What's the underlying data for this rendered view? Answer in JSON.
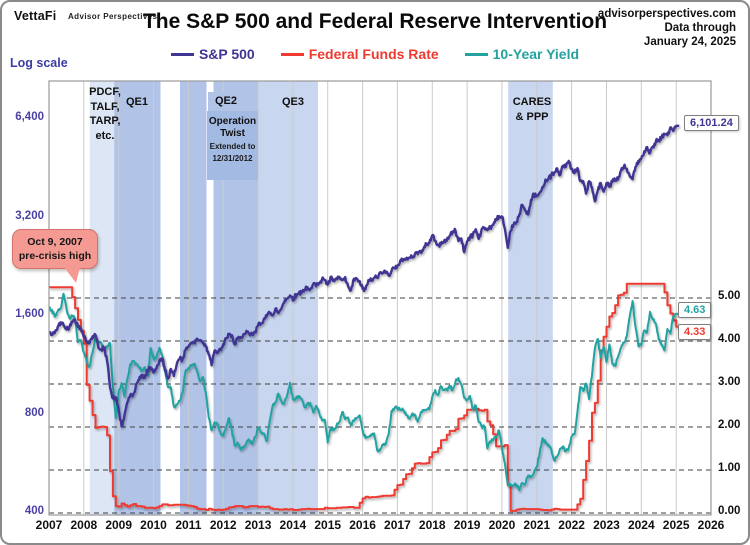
{
  "header": {
    "logo": "VettaFi",
    "logo_sub": "Advisor Perspectives",
    "title": "The S&P 500 and Federal Reserve Intervention",
    "source_site": "advisorperspectives.com",
    "data_through": "Data through",
    "data_date": "January 24, 2025"
  },
  "legend": [
    {
      "label": "S&P 500",
      "color": "#3f3693"
    },
    {
      "label": "Federal Funds Rate",
      "color": "#ee3a30"
    },
    {
      "label": "10-Year Yield",
      "color": "#23a2a0"
    }
  ],
  "axes": {
    "left_label": "Log scale",
    "left_ticks": [
      {
        "label": "6,400",
        "value": 6400
      },
      {
        "label": "3,200",
        "value": 3200
      },
      {
        "label": "1,600",
        "value": 1600
      },
      {
        "label": "800",
        "value": 800
      },
      {
        "label": "400",
        "value": 400
      }
    ],
    "right_ticks": [
      {
        "label": "5.00",
        "value": 5
      },
      {
        "label": "4.00",
        "value": 4
      },
      {
        "label": "3.00",
        "value": 3
      },
      {
        "label": "2.00",
        "value": 2
      },
      {
        "label": "1.00",
        "value": 1
      },
      {
        "label": "0.00",
        "value": 0
      }
    ],
    "years": [
      2007,
      2008,
      2009,
      2010,
      2011,
      2012,
      2013,
      2014,
      2015,
      2016,
      2017,
      2018,
      2019,
      2020,
      2021,
      2022,
      2023,
      2024,
      2025,
      2026
    ]
  },
  "annotations": {
    "precrisis": {
      "line1": "Oct 9, 2007",
      "line2": "pre-crisis high"
    },
    "pdcf": {
      "lines": [
        "PDCF,",
        "TALF,",
        "TARP,",
        "etc."
      ]
    },
    "qe1": "QE1",
    "qe2": "QE2",
    "qe3": "QE3",
    "optwist": {
      "line1": "Operation",
      "line2": "Twist",
      "line3": "Extended to",
      "line4": "12/31/2012"
    },
    "cares": {
      "line1": "CARES",
      "line2": "& PPP"
    }
  },
  "end_labels": {
    "sp500": "6,101.24",
    "ten_year": "4.63",
    "fed_funds": "4.33"
  },
  "colors": {
    "sp500": "#3f3693",
    "fed_funds": "#ee3a30",
    "ten_year": "#23a2a0",
    "axis_purple": "#4a42a3",
    "log_scale": "#3c3ca6",
    "band_light": "#dde6f5",
    "band_medium": "#b1c4e8",
    "band_soft": "#c8d6f0",
    "ot_box": "#a3bae3",
    "callout_bg": "#f49a92",
    "callout_border": "#d3736b"
  },
  "chart_data": {
    "type": "line",
    "title": "The S&P 500 and Federal Reserve Intervention",
    "x_range": [
      2007,
      2026
    ],
    "x_step_months": 1,
    "left_axis": {
      "scale": "log",
      "ticks": [
        400,
        800,
        1600,
        3200,
        6400
      ],
      "series": "S&P 500"
    },
    "right_axis": {
      "scale": "linear",
      "ticks": [
        0,
        1,
        2,
        3,
        4,
        5
      ],
      "series": "Fed Funds Rate and 10-Year Yield"
    },
    "bands": [
      {
        "name": "pdcf-talf-tarp",
        "from": 2008.17,
        "to": 2008.87,
        "color": "#dde6f5"
      },
      {
        "name": "qe1",
        "from": 2008.87,
        "to": 2010.2,
        "color": "#b1c4e8"
      },
      {
        "name": "qe2",
        "from": 2010.76,
        "to": 2011.52,
        "color": "#b1c4e8"
      },
      {
        "name": "qe3",
        "from": 2012.7,
        "to": 2014.72,
        "color": "#c8d6f0"
      },
      {
        "name": "operation-twist",
        "from": 2011.72,
        "to": 2013.0,
        "color": "#b1c4e8"
      },
      {
        "name": "cares-ppp",
        "from": 2020.18,
        "to": 2021.46,
        "color": "#c8d6f0"
      }
    ],
    "series": [
      {
        "name": "S&P 500",
        "axis": "left",
        "color": "#3f3693",
        "style": "line",
        "end_value": 6101.24,
        "values": [
          1438,
          1407,
          1421,
          1482,
          1531,
          1503,
          1455,
          1474,
          1527,
          1549,
          1481,
          1468,
          1379,
          1331,
          1323,
          1386,
          1400,
          1280,
          1267,
          1283,
          1166,
          969,
          896,
          903,
          826,
          735,
          798,
          873,
          919,
          919,
          987,
          1021,
          1057,
          1036,
          1096,
          1115,
          1074,
          1104,
          1169,
          1187,
          1089,
          1031,
          1102,
          1049,
          1141,
          1183,
          1181,
          1258,
          1286,
          1327,
          1326,
          1364,
          1345,
          1321,
          1292,
          1219,
          1131,
          1253,
          1247,
          1258,
          1312,
          1366,
          1408,
          1398,
          1310,
          1362,
          1379,
          1407,
          1441,
          1412,
          1416,
          1426,
          1498,
          1515,
          1569,
          1598,
          1631,
          1606,
          1686,
          1633,
          1682,
          1757,
          1806,
          1848,
          1783,
          1859,
          1872,
          1884,
          1924,
          1960,
          1931,
          2003,
          1972,
          2018,
          2068,
          2059,
          1995,
          2105,
          2068,
          2086,
          2107,
          2063,
          2104,
          1972,
          1920,
          2079,
          2080,
          2044,
          1940,
          1932,
          2060,
          2065,
          2097,
          2099,
          2174,
          2171,
          2168,
          2126,
          2199,
          2239,
          2279,
          2364,
          2363,
          2384,
          2412,
          2423,
          2470,
          2472,
          2519,
          2575,
          2648,
          2674,
          2824,
          2714,
          2641,
          2648,
          2705,
          2718,
          2816,
          2902,
          2914,
          2712,
          2760,
          2507,
          2704,
          2784,
          2834,
          2946,
          2752,
          2942,
          2980,
          2926,
          2977,
          3038,
          3141,
          3231,
          3226,
          2954,
          2585,
          2912,
          3044,
          3100,
          3271,
          3500,
          3363,
          3270,
          3622,
          3756,
          3714,
          3811,
          3973,
          4181,
          4204,
          4298,
          4395,
          4523,
          4308,
          4605,
          4567,
          4766,
          4516,
          4374,
          4530,
          4132,
          4132,
          3785,
          4130,
          3955,
          3586,
          3872,
          4080,
          3840,
          4077,
          3970,
          4109,
          4169,
          4180,
          4450,
          4589,
          4508,
          4288,
          4194,
          4568,
          4770,
          4846,
          5096,
          5254,
          5036,
          5278,
          5460,
          5522,
          5648,
          5762,
          5705,
          6032,
          5882,
          6101.24
        ]
      },
      {
        "name": "Federal Funds Rate",
        "axis": "right",
        "color": "#ee3a30",
        "style": "step",
        "end_value": 4.33,
        "values": [
          5.25,
          5.25,
          5.25,
          5.25,
          5.25,
          5.25,
          5.25,
          5.25,
          5.02,
          4.76,
          4.49,
          4.24,
          3.94,
          2.98,
          2.61,
          2.28,
          1.98,
          2.0,
          2.01,
          2.0,
          1.81,
          0.97,
          0.39,
          0.16,
          0.15,
          0.22,
          0.18,
          0.15,
          0.18,
          0.21,
          0.16,
          0.16,
          0.15,
          0.12,
          0.12,
          0.12,
          0.11,
          0.13,
          0.16,
          0.2,
          0.2,
          0.18,
          0.18,
          0.19,
          0.19,
          0.19,
          0.19,
          0.18,
          0.17,
          0.16,
          0.14,
          0.1,
          0.09,
          0.09,
          0.07,
          0.1,
          0.08,
          0.07,
          0.08,
          0.07,
          0.08,
          0.1,
          0.13,
          0.14,
          0.16,
          0.16,
          0.16,
          0.13,
          0.14,
          0.16,
          0.16,
          0.16,
          0.14,
          0.15,
          0.14,
          0.15,
          0.11,
          0.09,
          0.09,
          0.08,
          0.08,
          0.09,
          0.08,
          0.09,
          0.07,
          0.07,
          0.08,
          0.09,
          0.09,
          0.1,
          0.09,
          0.09,
          0.09,
          0.09,
          0.09,
          0.12,
          0.11,
          0.11,
          0.11,
          0.12,
          0.12,
          0.13,
          0.13,
          0.14,
          0.14,
          0.12,
          0.12,
          0.24,
          0.34,
          0.38,
          0.36,
          0.37,
          0.37,
          0.38,
          0.39,
          0.4,
          0.4,
          0.4,
          0.41,
          0.54,
          0.65,
          0.66,
          0.79,
          0.9,
          0.91,
          1.04,
          1.15,
          1.16,
          1.15,
          1.15,
          1.16,
          1.3,
          1.41,
          1.42,
          1.51,
          1.69,
          1.7,
          1.82,
          1.91,
          1.91,
          1.95,
          2.19,
          2.2,
          2.27,
          2.4,
          2.4,
          2.41,
          2.42,
          2.39,
          2.38,
          2.4,
          2.13,
          2.04,
          1.83,
          1.55,
          1.55,
          1.55,
          1.58,
          0.65,
          0.05,
          0.05,
          0.08,
          0.09,
          0.1,
          0.09,
          0.09,
          0.09,
          0.09,
          0.09,
          0.08,
          0.07,
          0.07,
          0.06,
          0.08,
          0.1,
          0.09,
          0.08,
          0.08,
          0.08,
          0.08,
          0.08,
          0.08,
          0.2,
          0.33,
          0.77,
          1.21,
          1.68,
          2.33,
          2.56,
          3.08,
          3.78,
          4.1,
          4.33,
          4.57,
          4.65,
          4.83,
          5.06,
          5.08,
          5.12,
          5.33,
          5.33,
          5.33,
          5.33,
          5.33,
          5.33,
          5.33,
          5.33,
          5.33,
          5.33,
          5.33,
          5.33,
          5.33,
          5.13,
          4.83,
          4.64,
          4.48,
          4.33
        ]
      },
      {
        "name": "10-Year Yield",
        "axis": "right",
        "color": "#23a2a0",
        "style": "line",
        "end_value": 4.63,
        "values": [
          4.76,
          4.72,
          4.56,
          4.69,
          4.75,
          5.1,
          4.76,
          4.54,
          4.59,
          4.53,
          3.97,
          4.02,
          3.74,
          3.51,
          3.41,
          3.73,
          4.06,
          3.99,
          3.95,
          3.83,
          3.85,
          3.95,
          2.96,
          2.21,
          2.84,
          3.02,
          2.71,
          3.12,
          3.46,
          3.53,
          3.48,
          3.4,
          3.31,
          3.39,
          3.2,
          3.84,
          3.59,
          3.61,
          3.84,
          3.66,
          3.29,
          2.93,
          2.91,
          2.47,
          2.51,
          2.6,
          2.8,
          3.3,
          3.37,
          3.42,
          3.47,
          3.29,
          3.06,
          3.16,
          2.8,
          2.22,
          1.92,
          2.11,
          2.07,
          1.88,
          1.8,
          1.97,
          2.21,
          1.91,
          1.56,
          1.64,
          1.47,
          1.55,
          1.63,
          1.69,
          1.61,
          1.76,
          1.98,
          1.88,
          1.85,
          1.67,
          2.13,
          2.49,
          2.58,
          2.78,
          2.61,
          2.55,
          2.74,
          3.03,
          2.64,
          2.65,
          2.72,
          2.65,
          2.46,
          2.53,
          2.56,
          2.34,
          2.49,
          2.34,
          2.16,
          2.17,
          1.64,
          1.99,
          1.92,
          2.03,
          2.12,
          2.35,
          2.18,
          2.22,
          2.04,
          2.14,
          2.21,
          2.27,
          1.92,
          1.74,
          1.77,
          1.83,
          1.85,
          1.47,
          1.45,
          1.58,
          1.6,
          1.83,
          2.38,
          2.44,
          2.45,
          2.39,
          2.39,
          2.28,
          2.2,
          2.3,
          2.29,
          2.12,
          2.33,
          2.38,
          2.41,
          2.41,
          2.71,
          2.86,
          2.74,
          2.95,
          2.86,
          2.86,
          2.96,
          2.86,
          3.06,
          3.14,
          2.99,
          2.68,
          2.63,
          2.72,
          2.41,
          2.5,
          2.12,
          2.01,
          2.01,
          1.5,
          1.67,
          1.69,
          1.78,
          1.92,
          1.51,
          1.15,
          0.67,
          0.64,
          0.65,
          0.66,
          0.53,
          0.7,
          0.68,
          0.87,
          0.84,
          0.93,
          1.07,
          1.4,
          1.74,
          1.63,
          1.59,
          1.47,
          1.22,
          1.31,
          1.49,
          1.55,
          1.44,
          1.51,
          1.78,
          1.83,
          2.34,
          2.93,
          2.84,
          3.01,
          2.65,
          3.19,
          3.83,
          4.05,
          3.61,
          3.87,
          3.51,
          3.92,
          3.47,
          3.42,
          3.64,
          3.84,
          3.96,
          4.11,
          4.57,
          4.93,
          4.33,
          3.88,
          3.91,
          4.25,
          4.2,
          4.68,
          4.5,
          4.4,
          4.03,
          3.9,
          3.78,
          4.28,
          4.17,
          4.57,
          4.63
        ]
      }
    ]
  }
}
